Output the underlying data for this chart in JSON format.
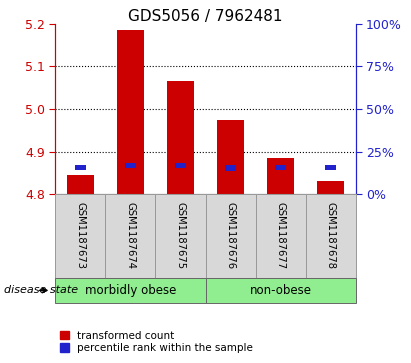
{
  "title": "GDS5056 / 7962481",
  "samples": [
    "GSM1187673",
    "GSM1187674",
    "GSM1187675",
    "GSM1187676",
    "GSM1187677",
    "GSM1187678"
  ],
  "red_values": [
    4.845,
    5.185,
    5.065,
    4.975,
    4.885,
    4.83
  ],
  "blue_values": [
    4.863,
    4.867,
    4.867,
    4.862,
    4.863,
    4.863
  ],
  "base_value": 4.8,
  "ylim_left": [
    4.8,
    5.2
  ],
  "ylim_right": [
    0,
    100
  ],
  "yticks_left": [
    4.8,
    4.9,
    5.0,
    5.1,
    5.2
  ],
  "yticks_right": [
    0,
    25,
    50,
    75,
    100
  ],
  "ytick_labels_right": [
    "0%",
    "25%",
    "50%",
    "75%",
    "100%"
  ],
  "groups": [
    {
      "label": "morbidly obese",
      "indices": [
        0,
        1,
        2
      ],
      "color": "#90ee90"
    },
    {
      "label": "non-obese",
      "indices": [
        3,
        4,
        5
      ],
      "color": "#90ee90"
    }
  ],
  "disease_state_label": "disease state",
  "legend_red": "transformed count",
  "legend_blue": "percentile rank within the sample",
  "bar_width": 0.55,
  "red_color": "#cc0000",
  "blue_color": "#2222cc",
  "bg_color": "#d8d8d8",
  "plot_bg": "#ffffff",
  "left_tick_color": "#cc0000",
  "right_tick_color": "#2222cc",
  "title_fontsize": 11
}
